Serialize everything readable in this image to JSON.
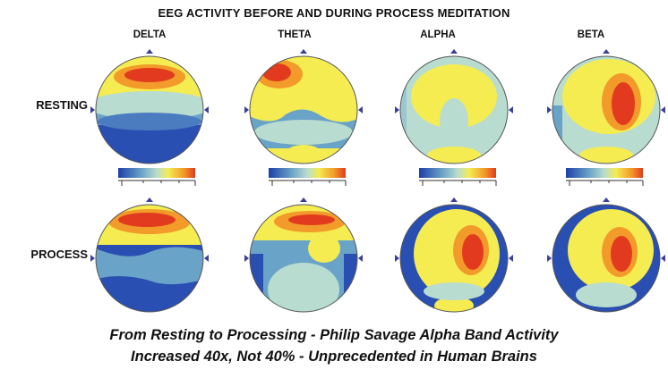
{
  "title": "EEG ACTIVITY BEFORE AND DURING PROCESS MEDITATION",
  "bands": [
    "DELTA",
    "THETA",
    "ALPHA",
    "BETA"
  ],
  "rows": [
    "RESTING",
    "PROCESS"
  ],
  "caption": {
    "line1": "From Resting to Processing - Philip Savage Alpha Band Activity",
    "line2": "Increased 40x, Not 40% - Unprecedented in Human Brains"
  },
  "colors": {
    "low": "#1f3fa8",
    "mid_low": "#6aa3c8",
    "mid": "#b8dccf",
    "high_mid": "#f5ec52",
    "high": "#f29a2a",
    "peak": "#e23a1e"
  }
}
